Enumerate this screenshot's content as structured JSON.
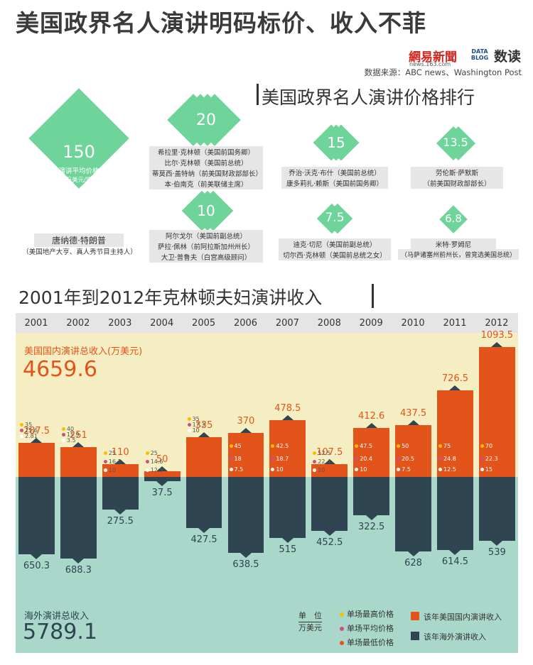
{
  "title": "美国政界名人演讲明码标价、收入不菲",
  "logo": {
    "brand": "網易新聞",
    "brand_sub": "news.163.com",
    "datablog": "DATA BLOG",
    "shudu": "数读"
  },
  "source": "数据来源：ABC news、Washington Post",
  "ranking": {
    "title": "美国政界名人演讲价格排行",
    "groups": [
      {
        "value": "150",
        "caption": [
          "演讲平均价格",
          "（万美元/场）"
        ],
        "names": [
          "唐纳德·特朗普",
          "（美国地产大亨、真人秀节目主持人）"
        ]
      },
      {
        "value": "20",
        "names": [
          "希拉里·克林顿（美国前国务卿）",
          "比尔·克林顿（美国前总统）",
          "蒂莫西·盖特纳（前美国财政部部长）",
          "本·伯南克（前美联储主席）"
        ]
      },
      {
        "value": "15",
        "names": [
          "乔治·沃克·布什（美国前总统）",
          "康多莉扎·赖斯（美国前国务卿）"
        ]
      },
      {
        "value": "13.5",
        "names": [
          "劳伦斯·萨默斯",
          "（前美国财政部部长）"
        ]
      },
      {
        "value": "10",
        "names": [
          "阿尔戈尔（美国前副总统）",
          "萨拉·佩林（前阿拉斯加州州长）",
          "大卫·普鲁夫（白宫高级顾问）"
        ]
      },
      {
        "value": "7.5",
        "names": [
          "迪克·切尼（美国前副总统）",
          "切尔西·克林顿（美国前总统之女）"
        ]
      },
      {
        "value": "6.8",
        "names": [
          "米特·罗姆尼",
          "（马萨诸塞州前州长，曾竞选美国总统）"
        ]
      }
    ]
  },
  "income": {
    "title": "2001年到2012年克林顿夫妇演讲收入",
    "domestic_label": "美国国内演讲总收入(万美元)",
    "domestic_total": "4659.6",
    "foreign_label": "海外演讲总收入",
    "foreign_total": "5789.1",
    "legend": {
      "unit": [
        "单　位",
        "万美元"
      ],
      "max": "单场最高价格",
      "avg": "单场平均价格",
      "min": "单场最低价格",
      "domestic": "该年美国国内演讲收入",
      "foreign": "该年海外演讲收入"
    }
  },
  "colors": {
    "domestic": "#e2541a",
    "foreign": "#2f4551",
    "diamond": "#6fd49a",
    "max_dot": "#f2c200",
    "avg_dot": "#c9508a",
    "min_dot": "#e2541a"
  },
  "chart_data": {
    "type": "bar",
    "categories": [
      "2001",
      "2002",
      "2003",
      "2004",
      "2005",
      "2006",
      "2007",
      "2008",
      "2009",
      "2010",
      "2011",
      "2012"
    ],
    "series": [
      {
        "name": "该年美国国内演讲收入",
        "values": [
          287.5,
          251,
          110,
          50,
          335,
          370,
          478.5,
          107.5,
          412.6,
          437.5,
          726.5,
          1093.5
        ]
      },
      {
        "name": "该年海外演讲收入",
        "values": [
          650.3,
          688.3,
          275.5,
          37.5,
          427.5,
          638.5,
          515,
          452.5,
          322.5,
          628,
          614.5,
          539
        ]
      }
    ],
    "price_points": {
      "max": [
        "35",
        "40",
        "25",
        "25",
        "35",
        "45",
        "42.5",
        "52.5",
        "47.5",
        "50",
        "75",
        "70"
      ],
      "avg": [
        "15.6",
        "15.9",
        "16.1",
        "14.6",
        "17.3",
        "18",
        "18.7",
        "22.4",
        "20.4",
        "20.5",
        "24.8",
        "22.3"
      ],
      "min": [
        "2.81",
        "3.5",
        "10",
        "12.5",
        "10",
        "7.5",
        "10",
        "10",
        "10",
        "7.5",
        "12.5",
        "15"
      ]
    },
    "totals": {
      "domestic": 4659.6,
      "foreign": 5789.1
    },
    "unit": "万美元"
  }
}
